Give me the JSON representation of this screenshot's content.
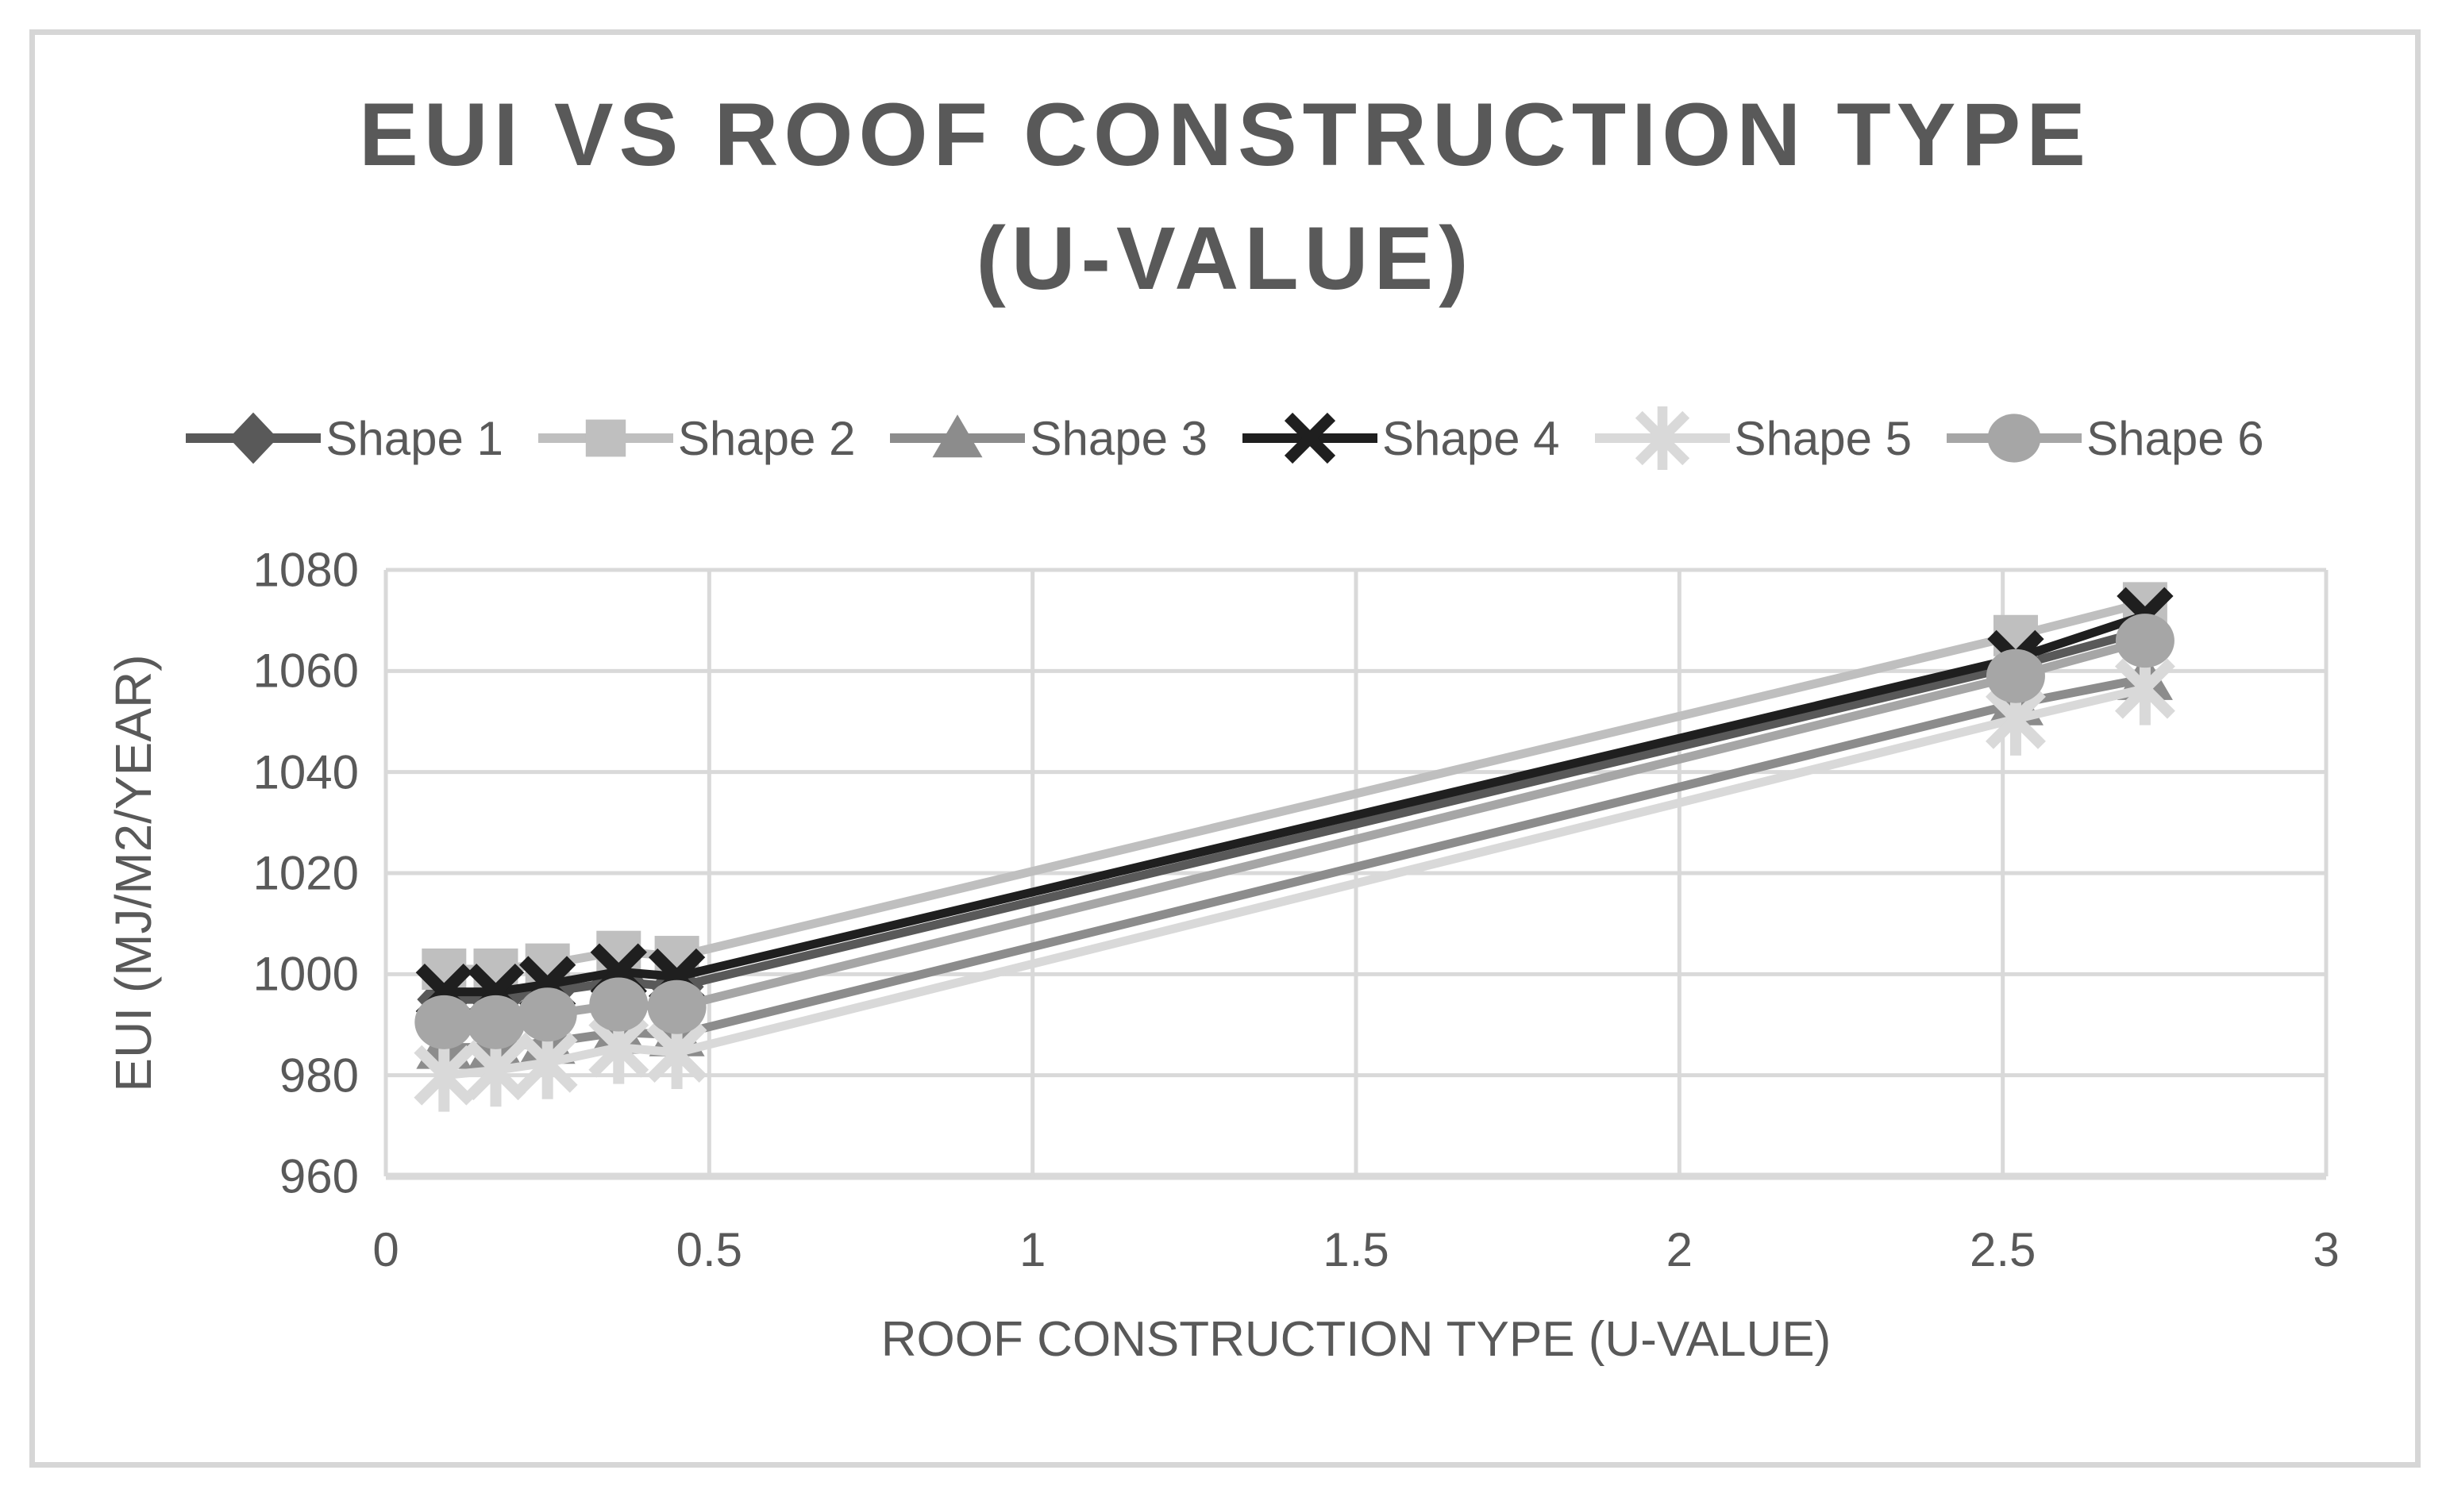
{
  "title_lines": [
    "EUI VS ROOF CONSTRUCTION TYPE",
    "(U-VALUE)"
  ],
  "colors": {
    "text": "#595959",
    "grid": "#d9d9d9",
    "figure_border": "#d6d6d6",
    "background": "#ffffff"
  },
  "chart_data": {
    "type": "line",
    "title": "EUI VS ROOF CONSTRUCTION TYPE (U-VALUE)",
    "xlabel": "ROOF CONSTRUCTION TYPE (U-VALUE)",
    "ylabel": "EUI (MJ/M2/YEAR)",
    "xlim": [
      0,
      3
    ],
    "ylim": [
      960,
      1080
    ],
    "grid": true,
    "legend_position": "top",
    "x_ticks": [
      0,
      0.5,
      1,
      1.5,
      2,
      2.5,
      3
    ],
    "x_tick_labels": [
      "0",
      "0.5",
      "1",
      "1.5",
      "2",
      "2.5",
      "3"
    ],
    "y_ticks": [
      960,
      980,
      1000,
      1020,
      1040,
      1060,
      1080
    ],
    "y_tick_labels": [
      "960",
      "980",
      "1000",
      "1020",
      "1040",
      "1060",
      "1080"
    ],
    "x": [
      0.09,
      0.17,
      0.25,
      0.36,
      0.45,
      2.52,
      2.72
    ],
    "series": [
      {
        "name": "Shape 1",
        "marker": "diamond",
        "color": "#595959",
        "values": [
          995,
          995,
          996.5,
          998.5,
          997.5,
          1061,
          1068
        ]
      },
      {
        "name": "Shape 2",
        "marker": "square",
        "color": "#bfbfbf",
        "values": [
          1001,
          1001,
          1002,
          1004.5,
          1003.5,
          1067,
          1073.5
        ]
      },
      {
        "name": "Shape 3",
        "marker": "triangle",
        "color": "#8c8c8c",
        "values": [
          985.5,
          985.5,
          986.5,
          988.5,
          988,
          1053.5,
          1058.5
        ]
      },
      {
        "name": "Shape 4",
        "marker": "x",
        "color": "#1f1f1f",
        "values": [
          996.5,
          996.5,
          998,
          1000.5,
          999.5,
          1062.5,
          1071
        ]
      },
      {
        "name": "Shape 5",
        "marker": "asterisk",
        "color": "#d9d9d9",
        "values": [
          980,
          981,
          982.5,
          985.5,
          984.5,
          1050.5,
          1056.5
        ]
      },
      {
        "name": "Shape 6",
        "marker": "circle",
        "color": "#a6a6a6",
        "values": [
          990.5,
          990.5,
          992,
          994,
          993.5,
          1059,
          1066
        ]
      }
    ]
  }
}
